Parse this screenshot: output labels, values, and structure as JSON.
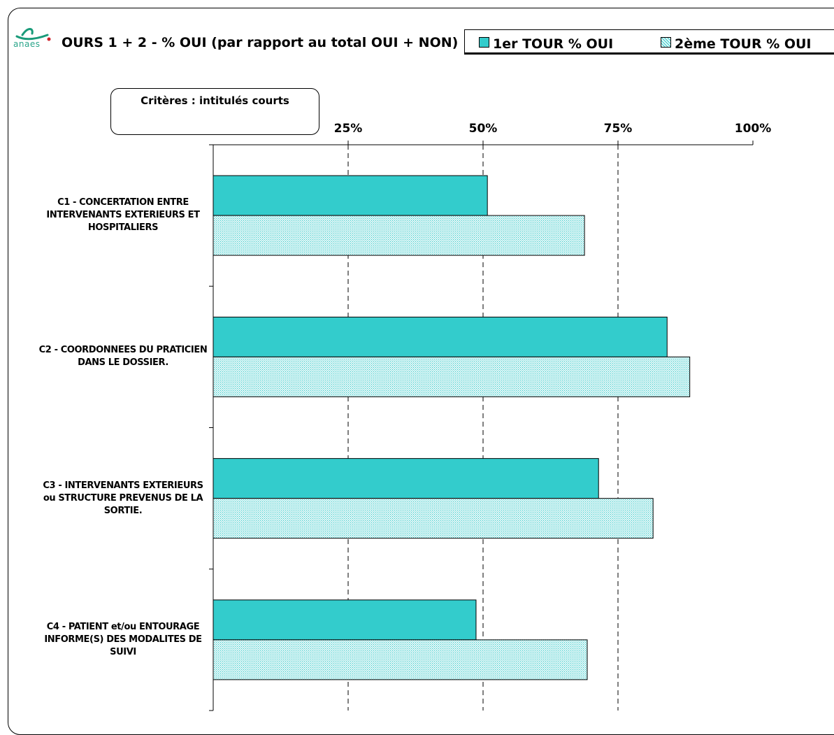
{
  "header": {
    "logo_text": "anaes",
    "title": "OURS 1 + 2  - % OUI  (par rapport au total OUI + NON)"
  },
  "legend": {
    "items": [
      {
        "label": "1er TOUR % OUI",
        "color": "#33CCCC",
        "pattern": "solid"
      },
      {
        "label": "2ème TOUR % OUI",
        "color": "#d9f2f2",
        "pattern": "dotted"
      }
    ]
  },
  "criteria_box": {
    "label": "Critères : intitulés courts"
  },
  "chart_data": {
    "type": "bar",
    "orientation": "horizontal",
    "categories": [
      "C1 - CONCERTATION ENTRE INTERVENANTS EXTERIEURS ET HOSPITALIERS",
      "C2 - COORDONNEES DU PRATICIEN DANS LE DOSSIER.",
      "C3 - INTERVENANTS EXTERIEURS ou  STRUCTURE PREVENUS DE LA SORTIE.",
      "C4 - PATIENT et/ou ENTOURAGE INFORME(S) DES MODALITES DE SUIVI"
    ],
    "category_lines": [
      [
        "C1 - CONCERTATION ENTRE",
        "INTERVENANTS EXTERIEURS ET",
        "HOSPITALIERS"
      ],
      [
        "C2 - COORDONNEES DU PRATICIEN",
        "DANS LE DOSSIER."
      ],
      [
        "C3 - INTERVENANTS EXTERIEURS",
        "ou  STRUCTURE PREVENUS DE LA",
        "SORTIE."
      ],
      [
        "C4 - PATIENT et/ou ENTOURAGE",
        "INFORME(S) DES MODALITES DE",
        "SUIVI"
      ]
    ],
    "series": [
      {
        "name": "1er TOUR % OUI",
        "values": [
          50.8,
          84.1,
          71.4,
          48.7
        ]
      },
      {
        "name": "2ème TOUR % OUI",
        "values": [
          68.8,
          88.3,
          81.5,
          69.3
        ]
      }
    ],
    "xlim": [
      0,
      100
    ],
    "xticks": [
      25,
      50,
      75,
      100
    ],
    "xtick_labels": [
      "25%",
      "50%",
      "75%",
      "100%"
    ],
    "grid": "vertical dashed",
    "legend_position": "top-right",
    "colors": {
      "series1": "#33CCCC",
      "series2_fill": "#e6f7f7",
      "series2_dots": "#33CCCC"
    }
  }
}
